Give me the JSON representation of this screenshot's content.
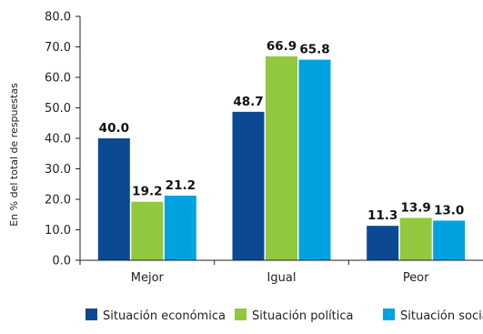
{
  "chart_data": {
    "type": "bar",
    "categories": [
      "Mejor",
      "Igual",
      "Peor"
    ],
    "series": [
      {
        "name": "Situación económica",
        "values": [
          40.0,
          48.7,
          11.3
        ],
        "color": "#0b4a93"
      },
      {
        "name": "Situación política",
        "values": [
          19.2,
          66.9,
          13.9
        ],
        "color": "#92c83e"
      },
      {
        "name": "Situación social",
        "values": [
          21.2,
          65.8,
          13.0
        ],
        "color": "#00a3e0"
      }
    ],
    "ylabel": "En % del total de respuestas",
    "ylim": [
      0,
      80
    ],
    "yticks": [
      0.0,
      10.0,
      20.0,
      30.0,
      40.0,
      50.0,
      60.0,
      70.0,
      80.0
    ],
    "legend_position": "bottom",
    "grid": false
  }
}
